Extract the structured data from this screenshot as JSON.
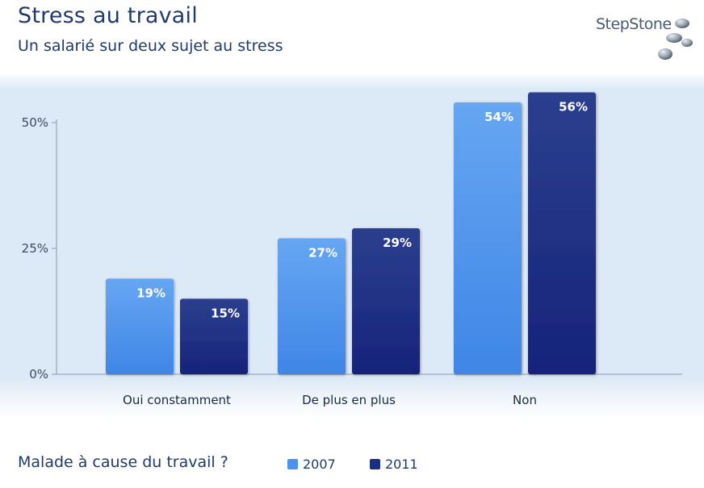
{
  "header": {
    "title": "Stress au travail",
    "subtitle": "Un salarié sur deux sujet au stress"
  },
  "logo": {
    "text": "StepStone"
  },
  "legend": {
    "question": "Malade à cause du travail ?"
  },
  "colors": {
    "series_2007": "#4b92ec",
    "series_2011": "#1b2e84",
    "axis": "#8a9aaa",
    "text": "#1f3a6b"
  },
  "chart_data": {
    "type": "bar",
    "categories": [
      "Oui constamment",
      "De plus en plus",
      "Non"
    ],
    "series": [
      {
        "name": "2007",
        "values": [
          19,
          27,
          54
        ],
        "labels": [
          "19%",
          "27%",
          "54%"
        ]
      },
      {
        "name": "2011",
        "values": [
          15,
          29,
          56
        ],
        "labels": [
          "15%",
          "29%",
          "56%"
        ]
      }
    ],
    "ylim": [
      0,
      50
    ],
    "yticks": [
      {
        "value": 0,
        "label": "0%"
      },
      {
        "value": 25,
        "label": "25%"
      },
      {
        "value": 50,
        "label": "50%"
      }
    ],
    "legend_position": "bottom"
  }
}
